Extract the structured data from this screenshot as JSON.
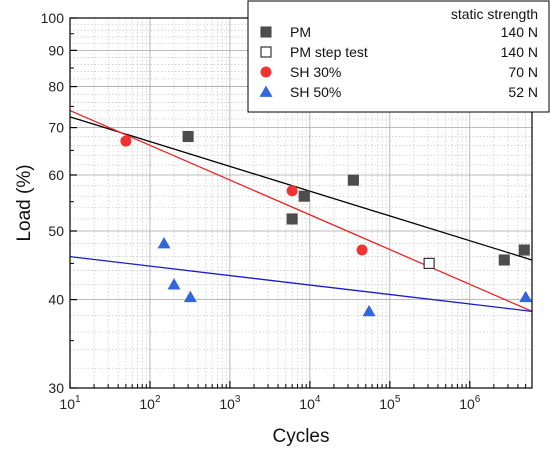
{
  "chart_data": {
    "type": "scatter",
    "title": "",
    "xlabel": "Cycles",
    "ylabel": "Load (%)",
    "xscale": "log",
    "yscale": "log",
    "xlim": [
      10,
      6000000
    ],
    "ylim": [
      30,
      100
    ],
    "grid": true,
    "legend_placement": "top-right",
    "legend_header": "static strength",
    "x_tick_labels": [
      {
        "value": 10,
        "base": "10",
        "exp": "1"
      },
      {
        "value": 100,
        "base": "10",
        "exp": "2"
      },
      {
        "value": 1000,
        "base": "10",
        "exp": "3"
      },
      {
        "value": 10000,
        "base": "10",
        "exp": "4"
      },
      {
        "value": 100000,
        "base": "10",
        "exp": "5"
      },
      {
        "value": 1000000,
        "base": "10",
        "exp": "6"
      }
    ],
    "y_tick_labels": [
      {
        "value": 30,
        "label": "30"
      },
      {
        "value": 40,
        "label": "40"
      },
      {
        "value": 50,
        "label": "50"
      },
      {
        "value": 60,
        "label": "60"
      },
      {
        "value": 70,
        "label": "70"
      },
      {
        "value": 80,
        "label": "80"
      },
      {
        "value": 90,
        "label": "90"
      },
      {
        "value": 100,
        "label": "100"
      }
    ],
    "series": [
      {
        "name": "PM",
        "static_strength": "140 N",
        "marker": "square",
        "filled": true,
        "color": "#4d4d4d",
        "points": [
          {
            "x": 300,
            "y": 68
          },
          {
            "x": 6000,
            "y": 52
          },
          {
            "x": 8500,
            "y": 56
          },
          {
            "x": 35000,
            "y": 59
          },
          {
            "x": 2700000,
            "y": 45.5
          },
          {
            "x": 4800000,
            "y": 47
          }
        ]
      },
      {
        "name": "PM step test",
        "static_strength": "140 N",
        "marker": "square",
        "filled": false,
        "color": "#222222",
        "points": [
          {
            "x": 310000,
            "y": 45
          }
        ]
      },
      {
        "name": "SH 30%",
        "static_strength": "70 N",
        "marker": "circle",
        "filled": true,
        "color": "#ee3333",
        "points": [
          {
            "x": 50,
            "y": 67
          },
          {
            "x": 6000,
            "y": 57
          },
          {
            "x": 45000,
            "y": 47
          }
        ]
      },
      {
        "name": "SH 50%",
        "static_strength": "52 N",
        "marker": "triangle",
        "filled": true,
        "color": "#3366dd",
        "points": [
          {
            "x": 150,
            "y": 48
          },
          {
            "x": 200,
            "y": 42
          },
          {
            "x": 320,
            "y": 40.3
          },
          {
            "x": 55000,
            "y": 38.5
          },
          {
            "x": 5000000,
            "y": 40.3
          }
        ]
      }
    ],
    "fit_lines": [
      {
        "color": "#000000",
        "from": {
          "x": 10,
          "y": 72.5
        },
        "to": {
          "x": 6000000,
          "y": 45.5
        }
      },
      {
        "color": "#ee2222",
        "from": {
          "x": 10,
          "y": 74
        },
        "to": {
          "x": 6000000,
          "y": 38.5
        }
      },
      {
        "color": "#1a1acc",
        "from": {
          "x": 10,
          "y": 46
        },
        "to": {
          "x": 6000000,
          "y": 38.5
        }
      }
    ]
  }
}
